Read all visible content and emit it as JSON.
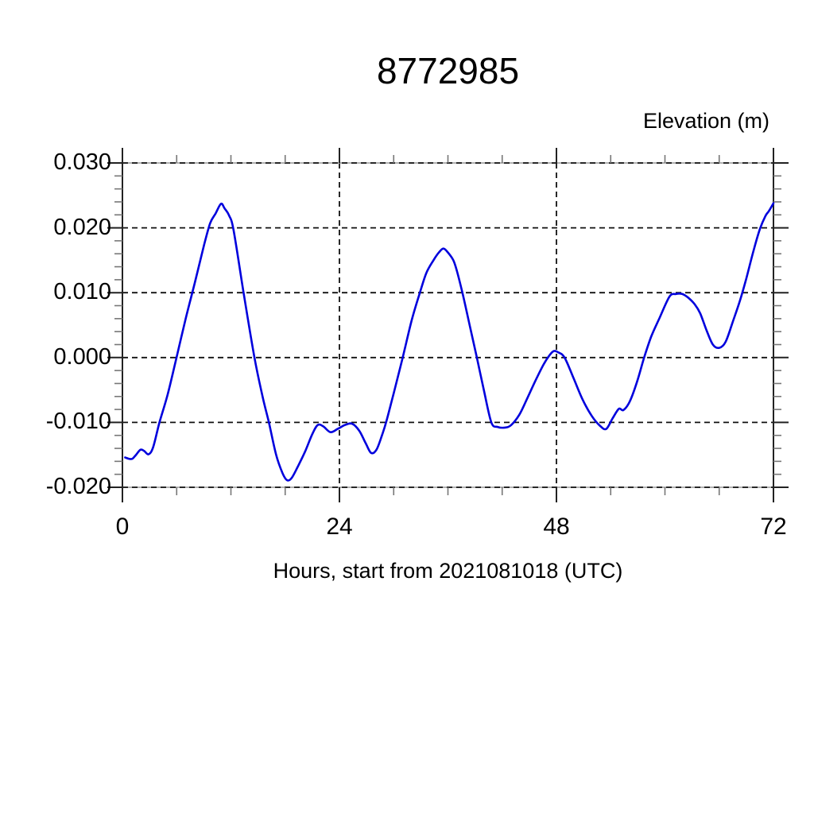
{
  "chart_data": {
    "type": "line",
    "title": "8772985",
    "xlabel": "Hours, start from 2021081018 (UTC)",
    "ylabel": "Elevation (m)",
    "xlim": [
      0,
      72
    ],
    "ylim": [
      -0.02,
      0.03
    ],
    "x_major_ticks": [
      0,
      24,
      48,
      72
    ],
    "x_tick_labels": [
      "0",
      "24",
      "48",
      "72"
    ],
    "x_minor_step": 6,
    "y_major_ticks": [
      0.03,
      0.02,
      0.01,
      0.0,
      -0.01,
      -0.02
    ],
    "y_tick_labels": [
      "0.030",
      "0.020",
      "0.010",
      "0.000",
      "-0.010",
      "-0.020"
    ],
    "y_minor_step": 0.002,
    "grid": "dashed black lines at major ticks, vertical at 24 and 48, horizontal at -0.020 to 0.030",
    "legend": "none",
    "line_color": "#0000dd",
    "series": [
      {
        "name": "elevation",
        "points": [
          [
            0.3,
            -0.0154
          ],
          [
            0.7,
            -0.0156
          ],
          [
            1.1,
            -0.0156
          ],
          [
            1.5,
            -0.015
          ],
          [
            2.0,
            -0.0142
          ],
          [
            2.4,
            -0.0144
          ],
          [
            2.9,
            -0.0149
          ],
          [
            3.4,
            -0.0138
          ],
          [
            4.1,
            -0.01
          ],
          [
            5.0,
            -0.0057
          ],
          [
            5.9,
            -0.0005
          ],
          [
            7.0,
            0.006
          ],
          [
            8.0,
            0.0115
          ],
          [
            9.0,
            0.0172
          ],
          [
            9.7,
            0.0207
          ],
          [
            10.3,
            0.0222
          ],
          [
            10.9,
            0.0237
          ],
          [
            11.3,
            0.023
          ],
          [
            11.8,
            0.0219
          ],
          [
            12.3,
            0.0196
          ],
          [
            13.4,
            0.01
          ],
          [
            14.6,
            0.0
          ],
          [
            15.5,
            -0.006
          ],
          [
            16.2,
            -0.01
          ],
          [
            17.0,
            -0.015
          ],
          [
            17.7,
            -0.0178
          ],
          [
            18.2,
            -0.0189
          ],
          [
            18.7,
            -0.0186
          ],
          [
            19.4,
            -0.0168
          ],
          [
            20.2,
            -0.0145
          ],
          [
            21.0,
            -0.0118
          ],
          [
            21.6,
            -0.0104
          ],
          [
            22.2,
            -0.0106
          ],
          [
            23.0,
            -0.0115
          ],
          [
            23.8,
            -0.011
          ],
          [
            24.6,
            -0.0104
          ],
          [
            25.4,
            -0.0102
          ],
          [
            26.2,
            -0.0113
          ],
          [
            26.9,
            -0.0132
          ],
          [
            27.5,
            -0.0147
          ],
          [
            28.1,
            -0.0142
          ],
          [
            28.7,
            -0.012
          ],
          [
            29.2,
            -0.0098
          ],
          [
            30.0,
            -0.0055
          ],
          [
            31.0,
            0.0
          ],
          [
            32.0,
            0.0058
          ],
          [
            32.9,
            0.01
          ],
          [
            33.6,
            0.013
          ],
          [
            34.4,
            0.015
          ],
          [
            35.0,
            0.0162
          ],
          [
            35.5,
            0.0168
          ],
          [
            36.0,
            0.0162
          ],
          [
            36.6,
            0.015
          ],
          [
            37.0,
            0.0133
          ],
          [
            37.6,
            0.01
          ],
          [
            38.4,
            0.005
          ],
          [
            39.2,
            0.0
          ],
          [
            40.0,
            -0.0052
          ],
          [
            40.8,
            -0.01
          ],
          [
            41.5,
            -0.0107
          ],
          [
            42.3,
            -0.0108
          ],
          [
            43.0,
            -0.0104
          ],
          [
            43.9,
            -0.0088
          ],
          [
            44.8,
            -0.0062
          ],
          [
            45.7,
            -0.0035
          ],
          [
            46.6,
            -0.001
          ],
          [
            47.2,
            0.0003
          ],
          [
            47.7,
            0.001
          ],
          [
            48.2,
            0.0008
          ],
          [
            48.9,
            0.0
          ],
          [
            49.9,
            -0.0032
          ],
          [
            50.9,
            -0.0065
          ],
          [
            51.9,
            -0.009
          ],
          [
            52.8,
            -0.0105
          ],
          [
            53.5,
            -0.011
          ],
          [
            54.2,
            -0.0094
          ],
          [
            54.9,
            -0.0079
          ],
          [
            55.4,
            -0.0081
          ],
          [
            56.1,
            -0.0068
          ],
          [
            56.9,
            -0.0038
          ],
          [
            57.7,
            0.0
          ],
          [
            58.5,
            0.0033
          ],
          [
            59.4,
            0.0061
          ],
          [
            60.5,
            0.0094
          ],
          [
            61.2,
            0.0098
          ],
          [
            61.9,
            0.0098
          ],
          [
            62.6,
            0.0092
          ],
          [
            63.3,
            0.0082
          ],
          [
            63.9,
            0.0068
          ],
          [
            64.6,
            0.0042
          ],
          [
            65.3,
            0.002
          ],
          [
            66.0,
            0.0015
          ],
          [
            66.7,
            0.0024
          ],
          [
            67.5,
            0.0055
          ],
          [
            68.3,
            0.0088
          ],
          [
            69.0,
            0.0122
          ],
          [
            69.8,
            0.0165
          ],
          [
            70.5,
            0.0198
          ],
          [
            71.1,
            0.0218
          ],
          [
            71.5,
            0.0226
          ],
          [
            72.0,
            0.0238
          ]
        ]
      }
    ]
  },
  "colors": {
    "background": "#ffffff",
    "text": "#000000",
    "frame": "#222222",
    "grid": "#111111",
    "minor_tick": "#777777",
    "line": "#0000dd"
  }
}
